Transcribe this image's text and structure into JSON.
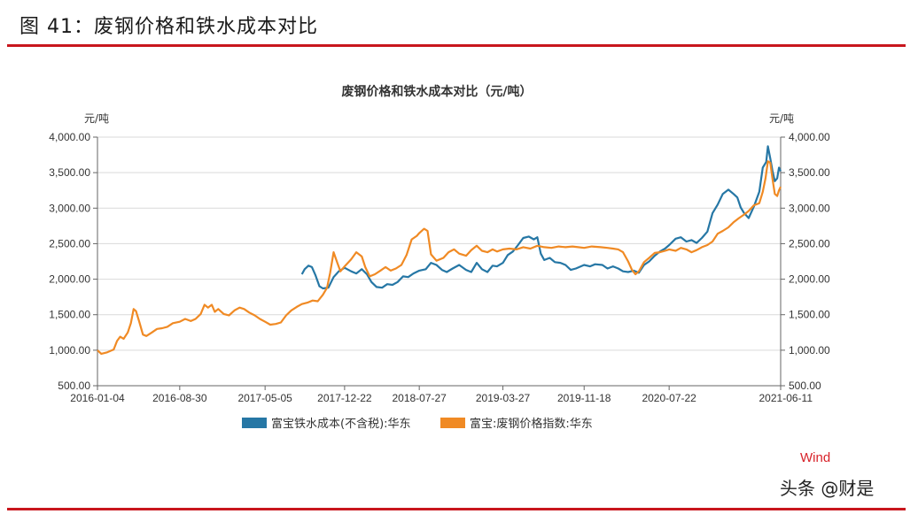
{
  "figure_title": "图 41：废钢价格和铁水成本对比",
  "source_label": "Wind",
  "watermark": "头条 @财是",
  "colors": {
    "accent_rule": "#c8161d",
    "series_blue": "#2677a5",
    "series_orange": "#f08a24",
    "source": "#d8232a"
  },
  "chart_data": {
    "type": "line",
    "title": "废钢价格和铁水成本对比（元/吨）",
    "ylabel_left": "元/吨",
    "ylabel_right": "元/吨",
    "ylim": [
      500,
      4000
    ],
    "yticks": [
      "500.00",
      "1,000.00",
      "1,500.00",
      "2,000.00",
      "2,500.00",
      "3,000.00",
      "3,500.00",
      "4,000.00"
    ],
    "xticks": [
      "2016-01-04",
      "2016-08-30",
      "2017-05-05",
      "2017-12-22",
      "2018-07-27",
      "2019-03-27",
      "2019-11-18",
      "2020-07-22",
      "2021-06-11"
    ],
    "xlim": [
      "2016-01-04",
      "2021-06-11"
    ],
    "grid": true,
    "legend_position": "bottom",
    "series": [
      {
        "name": "富宝铁水成本(不含税):华东",
        "color": "#2677a5",
        "points": [
          [
            "2017-08-20",
            2070
          ],
          [
            "2017-08-28",
            2140
          ],
          [
            "2017-09-08",
            2190
          ],
          [
            "2017-09-18",
            2170
          ],
          [
            "2017-09-28",
            2060
          ],
          [
            "2017-10-10",
            1900
          ],
          [
            "2017-10-20",
            1870
          ],
          [
            "2017-11-05",
            1880
          ],
          [
            "2017-11-20",
            2030
          ],
          [
            "2017-12-05",
            2110
          ],
          [
            "2017-12-22",
            2160
          ],
          [
            "2018-01-10",
            2110
          ],
          [
            "2018-01-25",
            2080
          ],
          [
            "2018-02-10",
            2140
          ],
          [
            "2018-02-25",
            2070
          ],
          [
            "2018-03-10",
            1960
          ],
          [
            "2018-03-25",
            1890
          ],
          [
            "2018-04-10",
            1880
          ],
          [
            "2018-04-25",
            1930
          ],
          [
            "2018-05-10",
            1920
          ],
          [
            "2018-05-25",
            1960
          ],
          [
            "2018-06-10",
            2040
          ],
          [
            "2018-06-25",
            2030
          ],
          [
            "2018-07-10",
            2080
          ],
          [
            "2018-07-27",
            2120
          ],
          [
            "2018-08-15",
            2140
          ],
          [
            "2018-08-30",
            2230
          ],
          [
            "2018-09-15",
            2200
          ],
          [
            "2018-10-01",
            2130
          ],
          [
            "2018-10-15",
            2100
          ],
          [
            "2018-11-01",
            2150
          ],
          [
            "2018-11-20",
            2200
          ],
          [
            "2018-12-10",
            2130
          ],
          [
            "2018-12-25",
            2100
          ],
          [
            "2019-01-10",
            2230
          ],
          [
            "2019-01-25",
            2140
          ],
          [
            "2019-02-10",
            2100
          ],
          [
            "2019-02-25",
            2190
          ],
          [
            "2019-03-10",
            2180
          ],
          [
            "2019-03-27",
            2230
          ],
          [
            "2019-04-10",
            2340
          ],
          [
            "2019-04-25",
            2390
          ],
          [
            "2019-05-10",
            2480
          ],
          [
            "2019-05-25",
            2580
          ],
          [
            "2019-06-10",
            2600
          ],
          [
            "2019-06-25",
            2560
          ],
          [
            "2019-07-05",
            2590
          ],
          [
            "2019-07-15",
            2360
          ],
          [
            "2019-07-25",
            2270
          ],
          [
            "2019-08-10",
            2300
          ],
          [
            "2019-08-25",
            2240
          ],
          [
            "2019-09-10",
            2230
          ],
          [
            "2019-09-25",
            2200
          ],
          [
            "2019-10-10",
            2130
          ],
          [
            "2019-10-25",
            2150
          ],
          [
            "2019-11-18",
            2200
          ],
          [
            "2019-12-05",
            2180
          ],
          [
            "2019-12-20",
            2210
          ],
          [
            "2020-01-10",
            2200
          ],
          [
            "2020-01-25",
            2150
          ],
          [
            "2020-02-10",
            2180
          ],
          [
            "2020-02-25",
            2150
          ],
          [
            "2020-03-10",
            2110
          ],
          [
            "2020-03-25",
            2100
          ],
          [
            "2020-04-10",
            2120
          ],
          [
            "2020-04-25",
            2090
          ],
          [
            "2020-05-10",
            2200
          ],
          [
            "2020-05-25",
            2250
          ],
          [
            "2020-06-10",
            2330
          ],
          [
            "2020-06-25",
            2390
          ],
          [
            "2020-07-10",
            2430
          ],
          [
            "2020-07-22",
            2480
          ],
          [
            "2020-08-10",
            2570
          ],
          [
            "2020-08-25",
            2590
          ],
          [
            "2020-09-10",
            2530
          ],
          [
            "2020-09-25",
            2550
          ],
          [
            "2020-10-10",
            2510
          ],
          [
            "2020-10-25",
            2580
          ],
          [
            "2020-11-10",
            2670
          ],
          [
            "2020-11-25",
            2930
          ],
          [
            "2020-12-10",
            3050
          ],
          [
            "2020-12-25",
            3200
          ],
          [
            "2021-01-10",
            3260
          ],
          [
            "2021-01-25",
            3200
          ],
          [
            "2021-02-05",
            3150
          ],
          [
            "2021-02-15",
            3010
          ],
          [
            "2021-02-25",
            2930
          ],
          [
            "2021-03-10",
            2860
          ],
          [
            "2021-03-25",
            3020
          ],
          [
            "2021-04-10",
            3230
          ],
          [
            "2021-04-20",
            3570
          ],
          [
            "2021-04-30",
            3650
          ],
          [
            "2021-05-05",
            3870
          ],
          [
            "2021-05-12",
            3700
          ],
          [
            "2021-05-18",
            3530
          ],
          [
            "2021-05-25",
            3380
          ],
          [
            "2021-06-01",
            3420
          ],
          [
            "2021-06-06",
            3570
          ],
          [
            "2021-06-11",
            3520
          ]
        ]
      },
      {
        "name": "富宝:废钢价格指数:华东",
        "color": "#f08a24",
        "points": [
          [
            "2016-01-04",
            1000
          ],
          [
            "2016-01-15",
            950
          ],
          [
            "2016-02-01",
            970
          ],
          [
            "2016-02-20",
            1010
          ],
          [
            "2016-03-01",
            1130
          ],
          [
            "2016-03-10",
            1190
          ],
          [
            "2016-03-20",
            1160
          ],
          [
            "2016-04-01",
            1250
          ],
          [
            "2016-04-10",
            1380
          ],
          [
            "2016-04-18",
            1580
          ],
          [
            "2016-04-25",
            1550
          ],
          [
            "2016-05-05",
            1390
          ],
          [
            "2016-05-15",
            1220
          ],
          [
            "2016-05-25",
            1200
          ],
          [
            "2016-06-10",
            1250
          ],
          [
            "2016-06-25",
            1300
          ],
          [
            "2016-07-10",
            1310
          ],
          [
            "2016-07-25",
            1330
          ],
          [
            "2016-08-10",
            1380
          ],
          [
            "2016-08-30",
            1400
          ],
          [
            "2016-09-15",
            1440
          ],
          [
            "2016-10-01",
            1410
          ],
          [
            "2016-10-15",
            1440
          ],
          [
            "2016-10-30",
            1510
          ],
          [
            "2016-11-10",
            1640
          ],
          [
            "2016-11-20",
            1600
          ],
          [
            "2016-12-01",
            1640
          ],
          [
            "2016-12-10",
            1540
          ],
          [
            "2016-12-20",
            1580
          ],
          [
            "2017-01-05",
            1510
          ],
          [
            "2017-01-20",
            1490
          ],
          [
            "2017-02-05",
            1560
          ],
          [
            "2017-02-20",
            1600
          ],
          [
            "2017-03-05",
            1580
          ],
          [
            "2017-03-20",
            1530
          ],
          [
            "2017-04-05",
            1490
          ],
          [
            "2017-04-20",
            1440
          ],
          [
            "2017-05-05",
            1400
          ],
          [
            "2017-05-20",
            1360
          ],
          [
            "2017-06-05",
            1370
          ],
          [
            "2017-06-20",
            1390
          ],
          [
            "2017-07-05",
            1490
          ],
          [
            "2017-07-20",
            1560
          ],
          [
            "2017-08-05",
            1610
          ],
          [
            "2017-08-20",
            1650
          ],
          [
            "2017-09-05",
            1670
          ],
          [
            "2017-09-20",
            1700
          ],
          [
            "2017-10-05",
            1690
          ],
          [
            "2017-10-20",
            1780
          ],
          [
            "2017-11-01",
            1880
          ],
          [
            "2017-11-10",
            2090
          ],
          [
            "2017-11-20",
            2380
          ],
          [
            "2017-12-01",
            2230
          ],
          [
            "2017-12-10",
            2110
          ],
          [
            "2017-12-22",
            2180
          ],
          [
            "2018-01-10",
            2280
          ],
          [
            "2018-01-25",
            2380
          ],
          [
            "2018-02-10",
            2320
          ],
          [
            "2018-02-20",
            2170
          ],
          [
            "2018-03-05",
            2040
          ],
          [
            "2018-03-20",
            2070
          ],
          [
            "2018-04-05",
            2120
          ],
          [
            "2018-04-20",
            2170
          ],
          [
            "2018-05-05",
            2120
          ],
          [
            "2018-05-20",
            2150
          ],
          [
            "2018-06-05",
            2200
          ],
          [
            "2018-06-20",
            2340
          ],
          [
            "2018-07-05",
            2560
          ],
          [
            "2018-07-20",
            2610
          ],
          [
            "2018-07-27",
            2650
          ],
          [
            "2018-08-10",
            2710
          ],
          [
            "2018-08-20",
            2680
          ],
          [
            "2018-08-30",
            2350
          ],
          [
            "2018-09-15",
            2260
          ],
          [
            "2018-10-05",
            2300
          ],
          [
            "2018-10-20",
            2380
          ],
          [
            "2018-11-05",
            2420
          ],
          [
            "2018-11-20",
            2360
          ],
          [
            "2018-12-10",
            2330
          ],
          [
            "2018-12-25",
            2410
          ],
          [
            "2019-01-10",
            2470
          ],
          [
            "2019-01-25",
            2400
          ],
          [
            "2019-02-10",
            2380
          ],
          [
            "2019-02-25",
            2420
          ],
          [
            "2019-03-10",
            2390
          ],
          [
            "2019-03-27",
            2420
          ],
          [
            "2019-04-15",
            2430
          ],
          [
            "2019-05-05",
            2420
          ],
          [
            "2019-05-25",
            2450
          ],
          [
            "2019-06-15",
            2430
          ],
          [
            "2019-07-05",
            2470
          ],
          [
            "2019-07-25",
            2450
          ],
          [
            "2019-08-15",
            2440
          ],
          [
            "2019-09-05",
            2460
          ],
          [
            "2019-09-25",
            2450
          ],
          [
            "2019-10-15",
            2460
          ],
          [
            "2019-11-01",
            2450
          ],
          [
            "2019-11-18",
            2440
          ],
          [
            "2019-12-10",
            2460
          ],
          [
            "2020-01-05",
            2450
          ],
          [
            "2020-01-25",
            2440
          ],
          [
            "2020-02-10",
            2430
          ],
          [
            "2020-02-25",
            2420
          ],
          [
            "2020-03-10",
            2380
          ],
          [
            "2020-03-25",
            2250
          ],
          [
            "2020-04-05",
            2130
          ],
          [
            "2020-04-15",
            2070
          ],
          [
            "2020-04-25",
            2110
          ],
          [
            "2020-05-10",
            2240
          ],
          [
            "2020-05-25",
            2300
          ],
          [
            "2020-06-10",
            2370
          ],
          [
            "2020-06-25",
            2380
          ],
          [
            "2020-07-10",
            2400
          ],
          [
            "2020-07-22",
            2420
          ],
          [
            "2020-08-10",
            2400
          ],
          [
            "2020-08-25",
            2440
          ],
          [
            "2020-09-10",
            2420
          ],
          [
            "2020-09-25",
            2380
          ],
          [
            "2020-10-10",
            2410
          ],
          [
            "2020-10-25",
            2450
          ],
          [
            "2020-11-10",
            2480
          ],
          [
            "2020-11-25",
            2530
          ],
          [
            "2020-12-10",
            2640
          ],
          [
            "2020-12-25",
            2680
          ],
          [
            "2021-01-10",
            2730
          ],
          [
            "2021-01-25",
            2800
          ],
          [
            "2021-02-10",
            2860
          ],
          [
            "2021-02-25",
            2910
          ],
          [
            "2021-03-10",
            2960
          ],
          [
            "2021-03-25",
            3040
          ],
          [
            "2021-04-10",
            3070
          ],
          [
            "2021-04-20",
            3230
          ],
          [
            "2021-04-28",
            3420
          ],
          [
            "2021-05-05",
            3660
          ],
          [
            "2021-05-12",
            3640
          ],
          [
            "2021-05-18",
            3420
          ],
          [
            "2021-05-25",
            3200
          ],
          [
            "2021-06-01",
            3170
          ],
          [
            "2021-06-06",
            3250
          ],
          [
            "2021-06-11",
            3300
          ]
        ]
      }
    ]
  }
}
